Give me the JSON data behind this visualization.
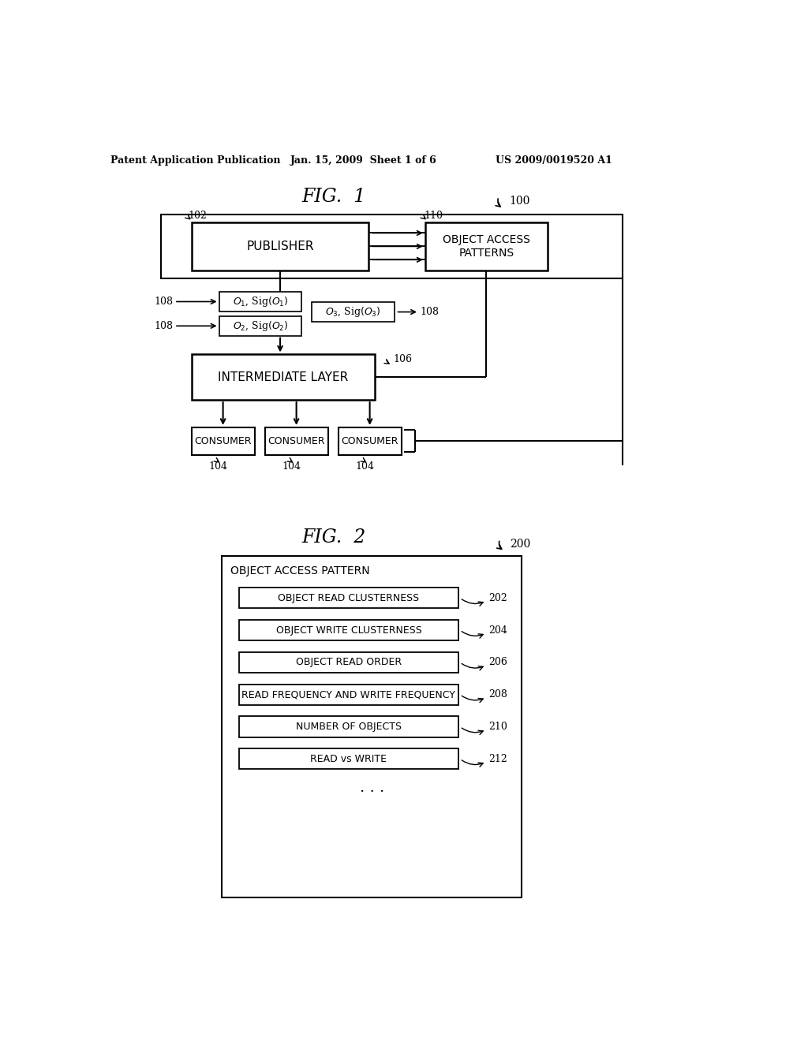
{
  "bg_color": "#ffffff",
  "header_text_left": "Patent Application Publication",
  "header_text_mid": "Jan. 15, 2009  Sheet 1 of 6",
  "header_text_right": "US 2009/0019520 A1",
  "fig1_title": "FIG.  1",
  "fig1_ref": "100",
  "fig2_title": "FIG.  2",
  "fig2_ref": "200",
  "publisher_label": "PUBLISHER",
  "publisher_ref": "102",
  "oap_label": "OBJECT ACCESS\nPATTERNS",
  "oap_ref": "110",
  "intermediate_label": "INTERMEDIATE LAYER",
  "intermediate_ref": "106",
  "consumer_label": "CONSUMER",
  "consumer_ref": "104",
  "obj_access_pattern_title": "OBJECT ACCESS PATTERN",
  "items": [
    {
      "label": "OBJECT READ CLUSTERNESS",
      "ref": "202"
    },
    {
      "label": "OBJECT WRITE CLUSTERNESS",
      "ref": "204"
    },
    {
      "label": "OBJECT READ ORDER",
      "ref": "206"
    },
    {
      "label": "READ FREQUENCY AND WRITE FREQUENCY",
      "ref": "208"
    },
    {
      "label": "NUMBER OF OBJECTS",
      "ref": "210"
    },
    {
      "label": "READ vs WRITE",
      "ref": "212"
    }
  ]
}
